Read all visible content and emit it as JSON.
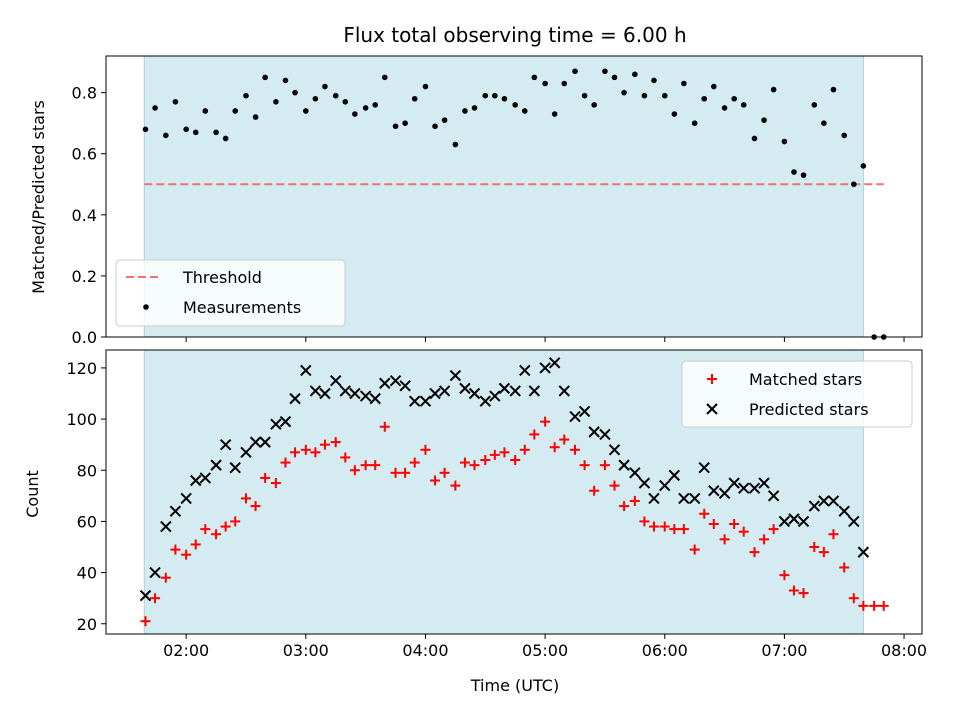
{
  "chart_data": [
    {
      "type": "scatter",
      "title": "Flux total observing time = 6.00 h",
      "xlabel": "",
      "ylabel": "Matched/Predicted stars",
      "ylim": [
        0,
        0.92
      ],
      "yticks": [
        "0.0",
        "0.2",
        "0.4",
        "0.6",
        "0.8"
      ],
      "xticks": [
        "02:00",
        "03:00",
        "04:00",
        "05:00",
        "06:00",
        "07:00",
        "08:00"
      ],
      "xlim_hours": [
        1.33,
        8.15
      ],
      "observing_window_hours": [
        1.65,
        7.66
      ],
      "shade_color": "#d3ebf1",
      "legend_position": "lower-left",
      "threshold": {
        "name": "Threshold",
        "value": 0.5,
        "x_range_hours": [
          1.65,
          7.83
        ],
        "color": "#f07272"
      },
      "measurements": {
        "name": "Measurements",
        "color": "#000000",
        "x_hours": [
          1.66,
          1.74,
          1.83,
          1.91,
          2.0,
          2.08,
          2.16,
          2.25,
          2.33,
          2.41,
          2.5,
          2.58,
          2.66,
          2.75,
          2.83,
          2.91,
          3.0,
          3.08,
          3.16,
          3.25,
          3.33,
          3.41,
          3.5,
          3.58,
          3.66,
          3.75,
          3.83,
          3.91,
          4.0,
          4.08,
          4.16,
          4.25,
          4.33,
          4.41,
          4.5,
          4.58,
          4.66,
          4.75,
          4.83,
          4.91,
          5.0,
          5.08,
          5.16,
          5.25,
          5.33,
          5.41,
          5.5,
          5.58,
          5.66,
          5.75,
          5.83,
          5.91,
          6.0,
          6.08,
          6.16,
          6.25,
          6.33,
          6.41,
          6.5,
          6.58,
          6.66,
          6.75,
          6.83,
          6.91,
          7.0,
          7.08,
          7.16,
          7.25,
          7.33,
          7.41,
          7.5,
          7.58,
          7.66,
          7.75,
          7.83
        ],
        "values": [
          0.68,
          0.75,
          0.66,
          0.77,
          0.68,
          0.67,
          0.74,
          0.67,
          0.65,
          0.74,
          0.79,
          0.72,
          0.85,
          0.77,
          0.84,
          0.8,
          0.74,
          0.78,
          0.82,
          0.79,
          0.77,
          0.73,
          0.75,
          0.76,
          0.85,
          0.69,
          0.7,
          0.78,
          0.82,
          0.69,
          0.71,
          0.63,
          0.74,
          0.75,
          0.79,
          0.79,
          0.78,
          0.76,
          0.74,
          0.85,
          0.83,
          0.73,
          0.83,
          0.87,
          0.79,
          0.76,
          0.87,
          0.85,
          0.8,
          0.86,
          0.79,
          0.84,
          0.79,
          0.73,
          0.83,
          0.7,
          0.78,
          0.82,
          0.75,
          0.78,
          0.76,
          0.65,
          0.71,
          0.81,
          0.64,
          0.54,
          0.53,
          0.76,
          0.7,
          0.81,
          0.66,
          0.5,
          0.56,
          0.0,
          0.0
        ]
      }
    },
    {
      "type": "scatter",
      "xlabel": "Time (UTC)",
      "ylabel": "Count",
      "ylim": [
        16,
        127
      ],
      "yticks": [
        "20",
        "40",
        "60",
        "80",
        "100",
        "120"
      ],
      "xticks": [
        "02:00",
        "03:00",
        "04:00",
        "05:00",
        "06:00",
        "07:00",
        "08:00"
      ],
      "xlim_hours": [
        1.33,
        8.15
      ],
      "observing_window_hours": [
        1.65,
        7.66
      ],
      "shade_color": "#d3ebf1",
      "legend_position": "upper-right",
      "series": [
        {
          "name": "Matched stars",
          "marker": "plus",
          "color": "#ff0000",
          "x_hours": [
            1.66,
            1.74,
            1.83,
            1.91,
            2.0,
            2.08,
            2.16,
            2.25,
            2.33,
            2.41,
            2.5,
            2.58,
            2.66,
            2.75,
            2.83,
            2.91,
            3.0,
            3.08,
            3.16,
            3.25,
            3.33,
            3.41,
            3.5,
            3.58,
            3.66,
            3.75,
            3.83,
            3.91,
            4.0,
            4.08,
            4.16,
            4.25,
            4.33,
            4.41,
            4.5,
            4.58,
            4.66,
            4.75,
            4.83,
            4.91,
            5.0,
            5.08,
            5.16,
            5.25,
            5.33,
            5.41,
            5.5,
            5.58,
            5.66,
            5.75,
            5.83,
            5.91,
            6.0,
            6.08,
            6.16,
            6.25,
            6.33,
            6.41,
            6.5,
            6.58,
            6.66,
            6.75,
            6.83,
            6.91,
            7.0,
            7.08,
            7.16,
            7.25,
            7.33,
            7.41,
            7.5,
            7.58,
            7.66,
            7.75,
            7.83
          ],
          "values": [
            21,
            30,
            38,
            49,
            47,
            51,
            57,
            55,
            58,
            60,
            69,
            66,
            77,
            75,
            83,
            87,
            88,
            87,
            90,
            91,
            85,
            80,
            82,
            82,
            97,
            79,
            79,
            83,
            88,
            76,
            79,
            74,
            83,
            82,
            84,
            86,
            87,
            84,
            88,
            94,
            99,
            89,
            92,
            88,
            82,
            72,
            82,
            74,
            66,
            68,
            60,
            58,
            58,
            57,
            57,
            49,
            63,
            59,
            53,
            59,
            56,
            48,
            53,
            57,
            39,
            33,
            32,
            50,
            48,
            55,
            42,
            30,
            27,
            27,
            27
          ]
        },
        {
          "name": "Predicted stars",
          "marker": "x",
          "color": "#000000",
          "x_hours": [
            1.66,
            1.74,
            1.83,
            1.91,
            2.0,
            2.08,
            2.16,
            2.25,
            2.33,
            2.41,
            2.5,
            2.58,
            2.66,
            2.75,
            2.83,
            2.91,
            3.0,
            3.08,
            3.16,
            3.25,
            3.33,
            3.41,
            3.5,
            3.58,
            3.66,
            3.75,
            3.83,
            3.91,
            4.0,
            4.08,
            4.16,
            4.25,
            4.33,
            4.41,
            4.5,
            4.58,
            4.66,
            4.75,
            4.83,
            4.91,
            5.0,
            5.08,
            5.16,
            5.25,
            5.33,
            5.41,
            5.5,
            5.58,
            5.66,
            5.75,
            5.83,
            5.91,
            6.0,
            6.08,
            6.16,
            6.25,
            6.33,
            6.41,
            6.5,
            6.58,
            6.66,
            6.75,
            6.83,
            6.91,
            7.0,
            7.08,
            7.16,
            7.25,
            7.33,
            7.41,
            7.5,
            7.58,
            7.66
          ],
          "values": [
            31,
            40,
            58,
            64,
            69,
            76,
            77,
            82,
            90,
            81,
            87,
            91,
            91,
            98,
            99,
            108,
            119,
            111,
            110,
            115,
            111,
            110,
            109,
            108,
            114,
            115,
            113,
            107,
            107,
            110,
            111,
            117,
            112,
            110,
            107,
            109,
            112,
            111,
            119,
            111,
            120,
            122,
            111,
            101,
            103,
            95,
            94,
            88,
            82,
            79,
            75,
            69,
            74,
            78,
            69,
            69,
            81,
            72,
            71,
            75,
            73,
            73,
            75,
            70,
            60,
            61,
            60,
            66,
            68,
            68,
            64,
            60,
            48
          ]
        }
      ]
    }
  ]
}
